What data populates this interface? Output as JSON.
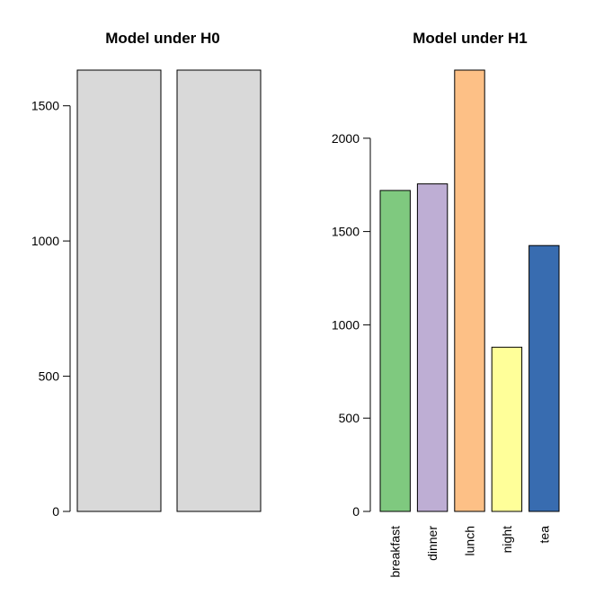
{
  "chart_data": [
    {
      "type": "bar",
      "title": "Model under H0",
      "xlabel": "",
      "ylabel": "",
      "categories": [
        "",
        ""
      ],
      "values": [
        1632,
        1632
      ],
      "colors": [
        "#d9d9d9",
        "#d9d9d9"
      ],
      "ylim": [
        0,
        1632
      ],
      "yticks": [
        0,
        500,
        1000,
        1500
      ],
      "show_category_labels": false,
      "grid": false
    },
    {
      "type": "bar",
      "title": "Model under H1",
      "xlabel": "",
      "ylabel": "",
      "categories": [
        "breakfast",
        "dinner",
        "lunch",
        "night",
        "tea"
      ],
      "values": [
        1720,
        1755,
        2365,
        880,
        1425
      ],
      "colors": [
        "#7fc97f",
        "#beaed4",
        "#fdc086",
        "#ffff99",
        "#386cb0"
      ],
      "ylim": [
        0,
        2365
      ],
      "yticks": [
        0,
        500,
        1000,
        1500,
        2000
      ],
      "show_category_labels": true,
      "grid": false
    }
  ]
}
